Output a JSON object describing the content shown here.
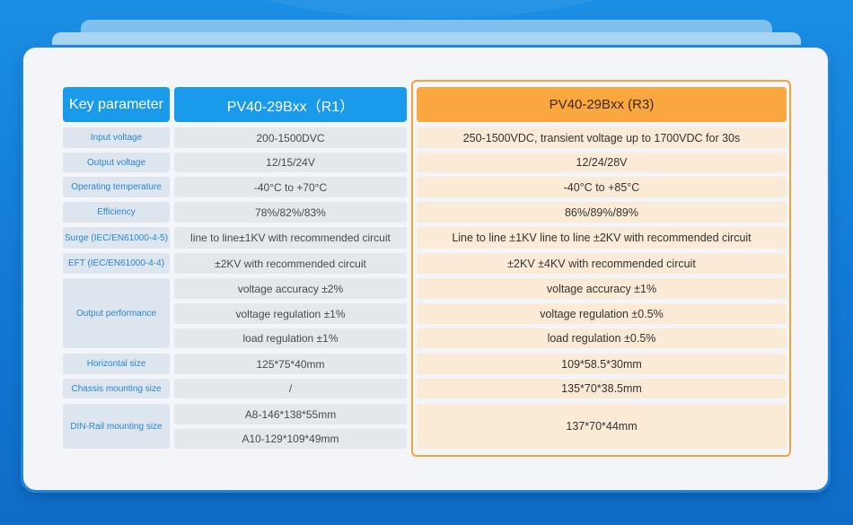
{
  "header": {
    "key_parameter": "Key parameter",
    "r1_model": "PV40-29Bxx（R1）",
    "r3_model": "PV40-29Bxx (R3)"
  },
  "rows": {
    "input_voltage": {
      "label": "Input voltage",
      "r1": "200-1500DVC",
      "r3": "250-1500VDC, transient voltage up to 1700VDC for 30s"
    },
    "output_voltage": {
      "label": "Output voltage",
      "r1": "12/15/24V",
      "r3": "12/24/28V"
    },
    "operating_temperature": {
      "label": "Operating temperature",
      "r1": "-40°C to +70°C",
      "r3": "-40°C to +85°C"
    },
    "efficiency": {
      "label": "Efficiency",
      "r1": "78%/82%/83%",
      "r3": "86%/89%/89%"
    },
    "surge": {
      "label": "Surge (IEC/EN61000-4-5)",
      "r1": "line to line±1KV with recommended circuit",
      "r3": "Line to line ±1KV line to line ±2KV with recommended circuit"
    },
    "eft": {
      "label": "EFT (IEC/EN61000-4-4)",
      "r1": "±2KV with recommended circuit",
      "r3": "±2KV ±4KV with recommended circuit"
    },
    "output_performance": {
      "label": "Output performance",
      "r1": [
        "voltage accuracy ±2%",
        "voltage regulation ±1%",
        "load regulation ±1%"
      ],
      "r3": [
        "voltage accuracy ±1%",
        "voltage regulation ±0.5%",
        "load regulation ±0.5%"
      ]
    },
    "horizontal_size": {
      "label": "Horizontal size",
      "r1": "125*75*40mm",
      "r3": "109*58.5*30mm"
    },
    "chassis_mounting_size": {
      "label": "Chassis mounting size",
      "r1": "/",
      "r3": "135*70*38.5mm"
    },
    "din_rail_mounting_size": {
      "label": "DIN-Rail mounting size",
      "r1": [
        "A8-146*138*55mm",
        "A10-129*109*49mm"
      ],
      "r3": "137*70*44mm"
    }
  },
  "colors": {
    "background": "#1580dc",
    "header_blue": "#1a9aea",
    "header_orange": "#f9a73e",
    "r3_highlight_border": "#f4a23c",
    "r3_cell": "#faead6",
    "label_text": "#2a86d2"
  }
}
